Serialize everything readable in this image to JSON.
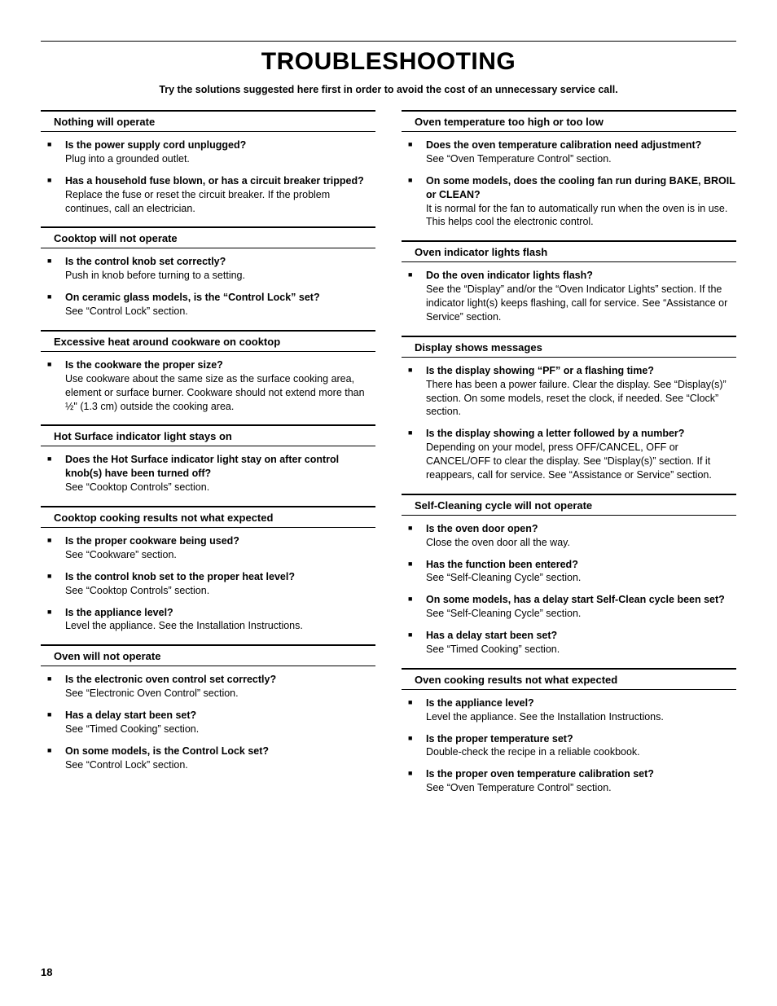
{
  "page": {
    "title": "TROUBLESHOOTING",
    "intro": "Try the solutions suggested here first in order to avoid the cost of an unnecessary service call.",
    "number": "18"
  },
  "left": [
    {
      "heading": "Nothing will operate",
      "items": [
        {
          "q": "Is the power supply cord unplugged?",
          "a": "Plug into a grounded outlet."
        },
        {
          "q": "Has a household fuse blown, or has a circuit breaker tripped?",
          "a": "Replace the fuse or reset the circuit breaker. If the problem continues, call an electrician."
        }
      ]
    },
    {
      "heading": "Cooktop will not operate",
      "items": [
        {
          "q": "Is the control knob set correctly?",
          "a": "Push in knob before turning to a setting."
        },
        {
          "q": "On ceramic glass models, is the “Control Lock” set?",
          "a": "See “Control Lock” section."
        }
      ]
    },
    {
      "heading": "Excessive heat around cookware on cooktop",
      "items": [
        {
          "q": "Is the cookware the proper size?",
          "a": "Use cookware about the same size as the surface cooking area, element or surface burner. Cookware should not extend more than ½\" (1.3 cm) outside the cooking area."
        }
      ]
    },
    {
      "heading": "Hot Surface indicator light stays on",
      "items": [
        {
          "q": "Does the Hot Surface indicator light stay on after control knob(s) have been turned off?",
          "a": "See “Cooktop Controls” section."
        }
      ]
    },
    {
      "heading": "Cooktop cooking results not what expected",
      "items": [
        {
          "q": "Is the proper cookware being used?",
          "a": "See “Cookware” section."
        },
        {
          "q": "Is the control knob set to the proper heat level?",
          "a": "See “Cooktop Controls” section."
        },
        {
          "q": "Is the appliance level?",
          "a": "Level the appliance. See the Installation Instructions."
        }
      ]
    },
    {
      "heading": "Oven will not operate",
      "items": [
        {
          "q": "Is the electronic oven control set correctly?",
          "a": "See “Electronic Oven Control” section."
        },
        {
          "q": "Has a delay start been set?",
          "a": "See “Timed Cooking” section."
        },
        {
          "q": "On some models, is the Control Lock set?",
          "a": "See “Control Lock” section."
        }
      ]
    }
  ],
  "right": [
    {
      "heading": "Oven temperature too high or too low",
      "items": [
        {
          "q": "Does the oven temperature calibration need adjustment?",
          "a": "See “Oven Temperature Control” section."
        },
        {
          "q": "On some models, does the cooling fan run during BAKE, BROIL or CLEAN?",
          "a": "It is normal for the fan to automatically run when the oven is in use. This helps cool the electronic control."
        }
      ]
    },
    {
      "heading": "Oven indicator lights flash",
      "items": [
        {
          "q": "Do the oven indicator lights flash?",
          "a": "See the “Display” and/or the “Oven Indicator Lights” section. If the indicator light(s) keeps flashing, call for service. See “Assistance or Service” section."
        }
      ]
    },
    {
      "heading": "Display shows messages",
      "items": [
        {
          "q": "Is the display showing “PF” or a flashing time?",
          "a": "There has been a power failure. Clear the display. See “Display(s)” section. On some models, reset the clock, if needed. See “Clock” section."
        },
        {
          "q": "Is the display showing a letter followed by a number?",
          "a": "Depending on your model, press OFF/CANCEL, OFF or CANCEL/OFF to clear the display. See “Display(s)” section. If it reappears, call for service. See “Assistance or Service” section."
        }
      ]
    },
    {
      "heading": "Self-Cleaning cycle will not operate",
      "items": [
        {
          "q": "Is the oven door open?",
          "a": "Close the oven door all the way."
        },
        {
          "q": "Has the function been entered?",
          "a": "See “Self-Cleaning Cycle” section."
        },
        {
          "q": "On some models, has a delay start Self-Clean cycle been set?",
          "a": "See “Self-Cleaning Cycle” section."
        },
        {
          "q": "Has a delay start been set?",
          "a": "See “Timed Cooking” section."
        }
      ]
    },
    {
      "heading": "Oven cooking results not what expected",
      "items": [
        {
          "q": "Is the appliance level?",
          "a": "Level the appliance. See the Installation Instructions."
        },
        {
          "q": "Is the proper temperature set?",
          "a": "Double-check the recipe in a reliable cookbook."
        },
        {
          "q": "Is the proper oven temperature calibration set?",
          "a": "See “Oven Temperature Control” section."
        }
      ]
    }
  ]
}
